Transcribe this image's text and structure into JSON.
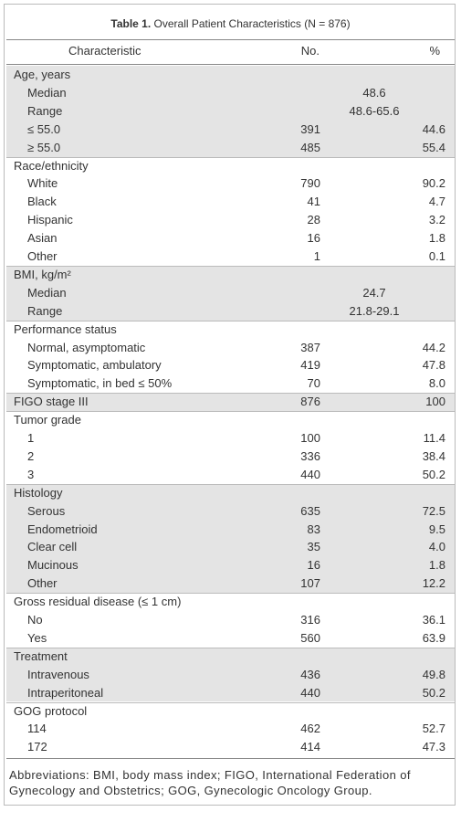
{
  "header": {
    "label": "Table 1.",
    "title": "Overall Patient Characteristics (N = 876)"
  },
  "table": {
    "columns": [
      "Characteristic",
      "No.",
      "%"
    ],
    "groups": [
      {
        "label": "Age, years",
        "rows": [
          {
            "label": "Median",
            "value": "48.6"
          },
          {
            "label": "Range",
            "value": "48.6-65.6"
          },
          {
            "label": "≤ 55.0",
            "no": "391",
            "pct": "44.6"
          },
          {
            "label": "≥ 55.0",
            "no": "485",
            "pct": "55.4"
          }
        ]
      },
      {
        "label": "Race/ethnicity",
        "rows": [
          {
            "label": "White",
            "no": "790",
            "pct": "90.2"
          },
          {
            "label": "Black",
            "no": "41",
            "pct": "4.7"
          },
          {
            "label": "Hispanic",
            "no": "28",
            "pct": "3.2"
          },
          {
            "label": "Asian",
            "no": "16",
            "pct": "1.8"
          },
          {
            "label": "Other",
            "no": "1",
            "pct": "0.1"
          }
        ]
      },
      {
        "label": "BMI, kg/m²",
        "rows": [
          {
            "label": "Median",
            "value": "24.7"
          },
          {
            "label": "Range",
            "value": "21.8-29.1"
          }
        ]
      },
      {
        "label": "Performance status",
        "rows": [
          {
            "label": "Normal, asymptomatic",
            "no": "387",
            "pct": "44.2"
          },
          {
            "label": "Symptomatic, ambulatory",
            "no": "419",
            "pct": "47.8"
          },
          {
            "label": "Symptomatic, in bed ≤ 50%",
            "no": "70",
            "pct": "8.0"
          }
        ]
      },
      {
        "label": "FIGO stage III",
        "no": "876",
        "pct": "100",
        "rows": []
      },
      {
        "label": "Tumor grade",
        "rows": [
          {
            "label": "1",
            "no": "100",
            "pct": "11.4"
          },
          {
            "label": "2",
            "no": "336",
            "pct": "38.4"
          },
          {
            "label": "3",
            "no": "440",
            "pct": "50.2"
          }
        ]
      },
      {
        "label": "Histology",
        "rows": [
          {
            "label": "Serous",
            "no": "635",
            "pct": "72.5"
          },
          {
            "label": "Endometrioid",
            "no": "83",
            "pct": "9.5"
          },
          {
            "label": "Clear cell",
            "no": "35",
            "pct": "4.0"
          },
          {
            "label": "Mucinous",
            "no": "16",
            "pct": "1.8"
          },
          {
            "label": "Other",
            "no": "107",
            "pct": "12.2"
          }
        ]
      },
      {
        "label": "Gross residual disease (≤ 1 cm)",
        "rows": [
          {
            "label": "No",
            "no": "316",
            "pct": "36.1"
          },
          {
            "label": "Yes",
            "no": "560",
            "pct": "63.9"
          }
        ]
      },
      {
        "label": "Treatment",
        "rows": [
          {
            "label": "Intravenous",
            "no": "436",
            "pct": "49.8"
          },
          {
            "label": "Intraperitoneal",
            "no": "440",
            "pct": "50.2"
          }
        ]
      },
      {
        "label": "GOG protocol",
        "rows": [
          {
            "label": "114",
            "no": "462",
            "pct": "52.7"
          },
          {
            "label": "172",
            "no": "414",
            "pct": "47.3"
          }
        ]
      }
    ]
  },
  "footnote": "Abbreviations: BMI, body mass index; FIGO, International Federation of Gynecology and Obstetrics; GOG, Gynecologic Oncology Group."
}
